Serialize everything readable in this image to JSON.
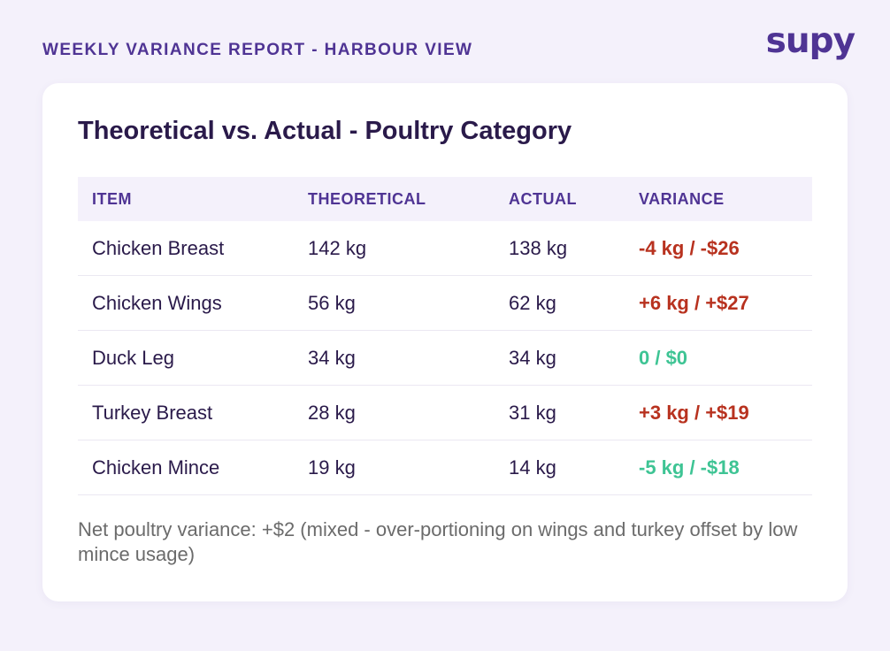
{
  "header": {
    "report_title": "WEEKLY VARIANCE REPORT - HARBOUR VIEW",
    "logo_text": "supy"
  },
  "card": {
    "title": "Theoretical vs. Actual - Poultry Category",
    "columns": [
      "ITEM",
      "THEORETICAL",
      "ACTUAL",
      "VARIANCE"
    ],
    "rows": [
      {
        "item": "Chicken Breast",
        "theoretical": "142 kg",
        "actual": "138 kg",
        "variance": "-4 kg / -$26",
        "status": "over"
      },
      {
        "item": "Chicken Wings",
        "theoretical": "56 kg",
        "actual": "62 kg",
        "variance": "+6 kg / +$27",
        "status": "over"
      },
      {
        "item": "Duck Leg",
        "theoretical": "34 kg",
        "actual": "34 kg",
        "variance": "0 / $0",
        "status": "good"
      },
      {
        "item": "Turkey Breast",
        "theoretical": "28 kg",
        "actual": "31 kg",
        "variance": "+3 kg / +$19",
        "status": "over"
      },
      {
        "item": "Chicken Mince",
        "theoretical": "19 kg",
        "actual": "14 kg",
        "variance": "-5 kg / -$18",
        "status": "good"
      }
    ],
    "note": "Net poultry variance: +$2 (mixed - over-portioning on wings and turkey offset by low mince usage)"
  },
  "colors": {
    "brand": "#4f3494",
    "variance_over": "#b8321f",
    "variance_good": "#3ec494",
    "background": "#f4f1fb"
  }
}
